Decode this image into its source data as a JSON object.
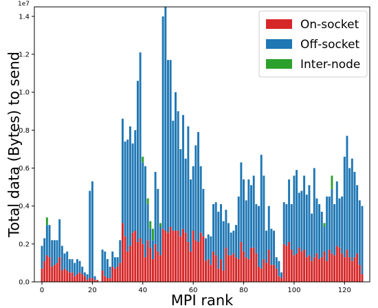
{
  "chart_data": {
    "type": "bar",
    "stacked": true,
    "xlabel": "MPI rank",
    "ylabel": "Total data (Bytes) to send",
    "y_scale_label": "1e7",
    "xlim": [
      -3,
      130
    ],
    "ylim": [
      0,
      14500000
    ],
    "x_ticks": [
      0,
      20,
      40,
      60,
      80,
      100,
      120
    ],
    "y_ticks": [
      0.0,
      0.2,
      0.4,
      0.6,
      0.8,
      1.0,
      1.2,
      1.4
    ],
    "y_tick_labels": [
      "0.0",
      "0.2",
      "0.4",
      "0.6",
      "0.8",
      "1.0",
      "1.2",
      "1.4"
    ],
    "legend_position": "upper right",
    "grid": false,
    "x": [
      0,
      1,
      2,
      3,
      4,
      5,
      6,
      7,
      8,
      9,
      10,
      11,
      12,
      13,
      14,
      15,
      16,
      17,
      18,
      19,
      20,
      21,
      22,
      23,
      24,
      25,
      26,
      27,
      28,
      29,
      30,
      31,
      32,
      33,
      34,
      35,
      36,
      37,
      38,
      39,
      40,
      41,
      42,
      43,
      44,
      45,
      46,
      47,
      48,
      49,
      50,
      51,
      52,
      53,
      54,
      55,
      56,
      57,
      58,
      59,
      60,
      61,
      62,
      63,
      64,
      65,
      66,
      67,
      68,
      69,
      70,
      71,
      72,
      73,
      74,
      75,
      76,
      77,
      78,
      79,
      80,
      81,
      82,
      83,
      84,
      85,
      86,
      87,
      88,
      89,
      90,
      91,
      92,
      93,
      94,
      95,
      96,
      97,
      98,
      99,
      100,
      101,
      102,
      103,
      104,
      105,
      106,
      107,
      108,
      109,
      110,
      111,
      112,
      113,
      114,
      115,
      116,
      117,
      118,
      119,
      120,
      121,
      122,
      123,
      124,
      125,
      126,
      127
    ],
    "series": [
      {
        "name": "On-socket",
        "color": "#d62728",
        "values": [
          700000,
          1100000,
          1400000,
          1300000,
          800000,
          900000,
          1000000,
          1300000,
          600000,
          700000,
          600000,
          500000,
          500000,
          300000,
          400000,
          500000,
          400000,
          300000,
          100000,
          200000,
          200000,
          100000,
          100000,
          0,
          600000,
          300000,
          200000,
          200000,
          800000,
          700000,
          800000,
          1000000,
          3100000,
          2400000,
          1600000,
          1900000,
          2600000,
          2700000,
          2100000,
          2300000,
          2000000,
          1300000,
          2200000,
          1800000,
          1200000,
          2000000,
          1600000,
          1400000,
          2800000,
          2700000,
          2600000,
          2900000,
          2700000,
          2700000,
          2700000,
          2400000,
          2800000,
          2600000,
          2100000,
          1600000,
          2700000,
          2200000,
          2100000,
          2600000,
          2400000,
          1100000,
          1200000,
          900000,
          1600000,
          1400000,
          700000,
          1200000,
          600000,
          1800000,
          1400000,
          1400000,
          1500000,
          1300000,
          1200000,
          2100000,
          1600000,
          1300000,
          1200000,
          1800000,
          1800000,
          1500000,
          800000,
          700000,
          1200000,
          1000000,
          1700000,
          900000,
          900000,
          700000,
          300000,
          200000,
          2000000,
          1900000,
          2100000,
          1700000,
          1400000,
          1500000,
          1800000,
          1600000,
          1700000,
          1300000,
          1400000,
          1100000,
          1300000,
          1500000,
          1200000,
          1300000,
          1600000,
          1100000,
          1700000,
          1500000,
          1400000,
          1900000,
          1800000,
          1500000,
          1300000,
          1700000,
          1300000,
          1100000,
          1300000,
          1500000,
          900000,
          400000
        ],
        "value_labels_visible": false
      },
      {
        "name": "Off-socket",
        "color": "#1f77b4",
        "values": [
          1200000,
          1200000,
          1600000,
          1700000,
          1400000,
          1300000,
          1200000,
          2000000,
          1300000,
          800000,
          1000000,
          700000,
          700000,
          700000,
          800000,
          600000,
          400000,
          200000,
          300000,
          4600000,
          5100000,
          200000,
          0,
          0,
          1100000,
          1300000,
          1000000,
          600000,
          800000,
          600000,
          500000,
          1200000,
          5500000,
          5000000,
          5900000,
          6300000,
          4700000,
          5300000,
          8500000,
          9800000,
          4300000,
          4800000,
          1900000,
          1000000,
          1000000,
          3800000,
          3300000,
          1500000,
          11200000,
          12000000,
          9100000,
          8800000,
          5800000,
          7300000,
          6300000,
          4600000,
          6000000,
          3900000,
          6100000,
          3800000,
          3400000,
          5000000,
          5800000,
          3500000,
          2500000,
          1200000,
          1300000,
          1500000,
          2500000,
          2800000,
          3000000,
          2900000,
          2600000,
          2000000,
          1700000,
          1200000,
          1200000,
          1700000,
          3300000,
          4200000,
          3800000,
          3000000,
          4200000,
          3300000,
          3800000,
          2600000,
          3200000,
          6000000,
          4400000,
          1700000,
          2300000,
          1900000,
          1800000,
          600000,
          800000,
          300000,
          2200000,
          2200000,
          3300000,
          2400000,
          4200000,
          4400000,
          2900000,
          3200000,
          3900000,
          3300000,
          3700000,
          2500000,
          4700000,
          2900000,
          2900000,
          2400000,
          1300000,
          3400000,
          2800000,
          3400000,
          2700000,
          3400000,
          2600000,
          3000000,
          5300000,
          6000000,
          4700000,
          5400000,
          4500000,
          3600000,
          3400000,
          3600000
        ],
        "value_labels_visible": false
      },
      {
        "name": "Inter-node",
        "color": "#2ca02c",
        "values": [
          0,
          0,
          400000,
          0,
          0,
          0,
          0,
          0,
          0,
          0,
          0,
          0,
          0,
          0,
          0,
          0,
          0,
          0,
          0,
          0,
          0,
          0,
          0,
          0,
          0,
          0,
          0,
          0,
          0,
          0,
          0,
          0,
          0,
          0,
          0,
          0,
          0,
          0,
          0,
          0,
          300000,
          0,
          300000,
          400000,
          600000,
          0,
          0,
          200000,
          0,
          0,
          0,
          0,
          0,
          0,
          0,
          0,
          0,
          0,
          0,
          0,
          0,
          0,
          0,
          0,
          0,
          0,
          0,
          0,
          0,
          0,
          0,
          0,
          0,
          0,
          0,
          0,
          0,
          0,
          0,
          0,
          0,
          0,
          0,
          0,
          0,
          0,
          0,
          0,
          0,
          0,
          0,
          0,
          0,
          0,
          0,
          0,
          0,
          0,
          0,
          0,
          0,
          0,
          0,
          0,
          0,
          0,
          0,
          0,
          0,
          0,
          0,
          0,
          200000,
          0,
          0,
          700000,
          0,
          0,
          0,
          0,
          0,
          0,
          0,
          0,
          0,
          0,
          0,
          0
        ],
        "value_labels_visible": false
      }
    ]
  }
}
